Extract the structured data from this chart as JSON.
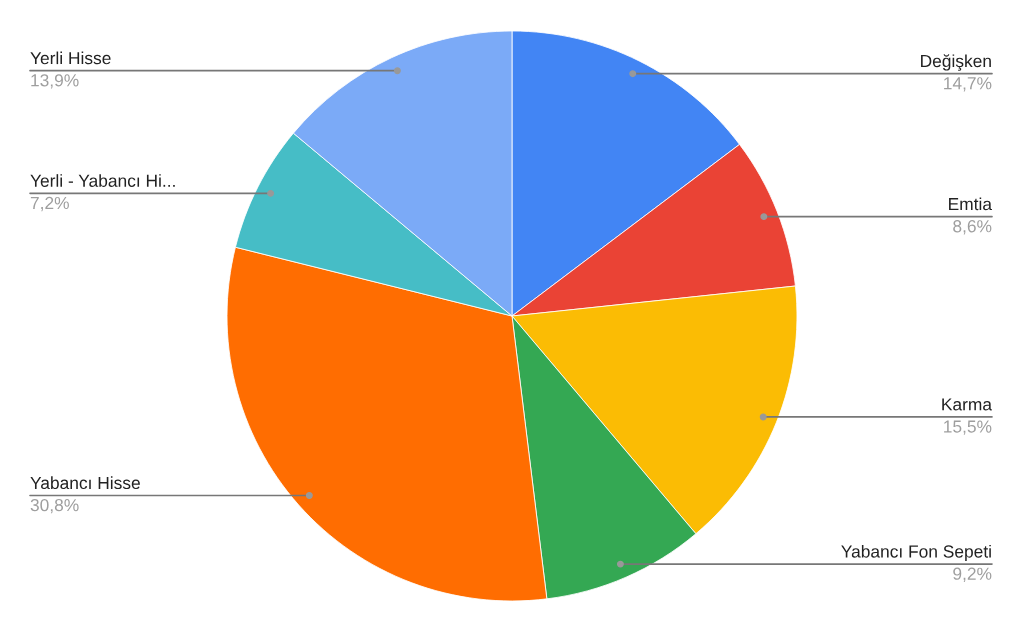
{
  "chart_data": {
    "type": "pie",
    "categories": [
      "Değişken",
      "Emtia",
      "Karma",
      "Yabancı Fon Sepeti",
      "Yabancı Hisse",
      "Yerli - Yabancı Hi...",
      "Yerli Hisse"
    ],
    "values": [
      14.7,
      8.6,
      15.5,
      9.2,
      30.8,
      7.2,
      13.9
    ],
    "value_labels": [
      "14,7%",
      "8,6%",
      "15,5%",
      "9,2%",
      "30,8%",
      "7,2%",
      "13,9%"
    ],
    "colors": [
      "#4285f4",
      "#ea4335",
      "#fbbc04",
      "#34a853",
      "#ff6d01",
      "#46bdc6",
      "#7baaf7"
    ]
  }
}
